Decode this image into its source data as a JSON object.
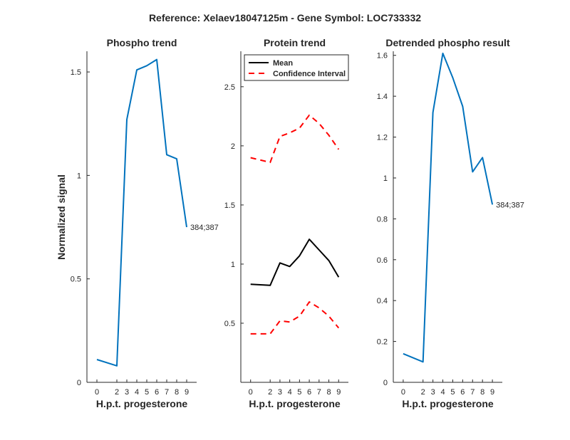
{
  "figure": {
    "suptitle": "Reference:  Xelaev18047125m - Gene Symbol:  LOC733332"
  },
  "colors": {
    "blue": "#0072BD",
    "black": "#000000",
    "red": "#FF0000"
  },
  "chart_data": [
    {
      "type": "line",
      "title": "Phospho trend",
      "xlabel": "H.p.t. progesterone",
      "ylabel": "Normalized signal",
      "x": [
        0,
        2,
        3,
        4,
        5,
        6,
        7,
        8,
        9
      ],
      "xlim": [
        -1,
        10
      ],
      "ylim": [
        0,
        1.6
      ],
      "yticks": [
        0,
        0.5,
        1,
        1.5
      ],
      "ytick_labels": [
        "0",
        "0.5",
        "1",
        "1.5"
      ],
      "series": [
        {
          "name": "384;387",
          "color": "blue",
          "values": [
            0.11,
            0.08,
            1.27,
            1.51,
            1.53,
            1.56,
            1.1,
            1.08,
            0.75
          ]
        }
      ],
      "annotation": "384;387"
    },
    {
      "type": "line",
      "title": "Protein trend",
      "xlabel": "H.p.t. progesterone",
      "ylabel": "",
      "x": [
        0,
        2,
        3,
        4,
        5,
        6,
        7,
        8,
        9
      ],
      "xlim": [
        -1,
        10
      ],
      "ylim": [
        0,
        2.8
      ],
      "yticks": [
        0.5,
        1,
        1.5,
        2,
        2.5
      ],
      "ytick_labels": [
        "0.5",
        "1",
        "1.5",
        "2",
        "2.5"
      ],
      "legend": [
        "Mean",
        "Confidence Interval"
      ],
      "series": [
        {
          "name": "Mean",
          "color": "black",
          "values": [
            0.83,
            0.82,
            1.01,
            0.98,
            1.07,
            1.21,
            1.12,
            1.03,
            0.89
          ]
        },
        {
          "name": "Confidence Interval",
          "color": "red",
          "values": [
            1.9,
            1.86,
            2.08,
            2.11,
            2.15,
            2.26,
            2.19,
            2.09,
            1.97
          ]
        },
        {
          "name": "Confidence Interval",
          "color": "red",
          "values": [
            0.41,
            0.41,
            0.52,
            0.51,
            0.56,
            0.68,
            0.63,
            0.56,
            0.46
          ]
        }
      ]
    },
    {
      "type": "line",
      "title": "Detrended phospho result",
      "xlabel": "H.p.t. progesterone",
      "ylabel": "",
      "x": [
        0,
        2,
        3,
        4,
        5,
        6,
        7,
        8,
        9
      ],
      "xlim": [
        -1,
        10
      ],
      "ylim": [
        0,
        1.62
      ],
      "yticks": [
        0,
        0.2,
        0.4,
        0.6,
        0.8,
        1,
        1.2,
        1.4,
        1.6
      ],
      "ytick_labels": [
        "0",
        "0.2",
        "0.4",
        "0.6",
        "0.8",
        "1",
        "1.2",
        "1.4",
        "1.6"
      ],
      "series": [
        {
          "name": "384;387",
          "color": "blue",
          "values": [
            0.14,
            0.1,
            1.32,
            1.61,
            1.49,
            1.35,
            1.03,
            1.1,
            0.87
          ]
        }
      ],
      "annotation": "384;387"
    }
  ]
}
